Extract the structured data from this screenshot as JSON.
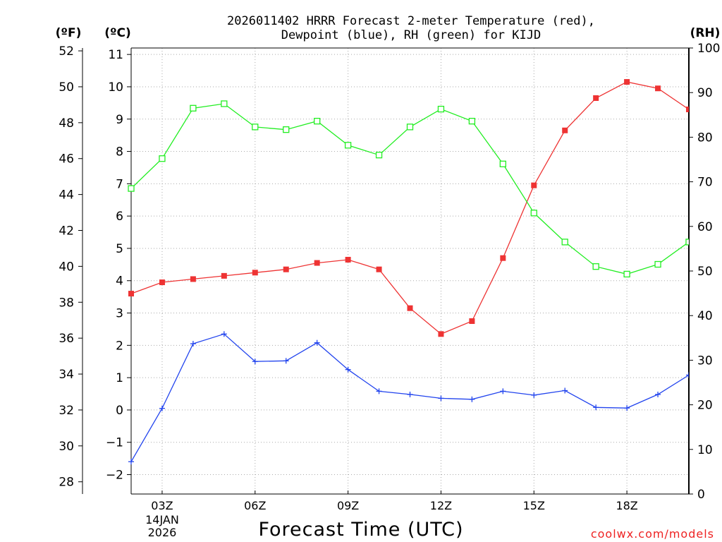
{
  "chart_data": {
    "type": "line",
    "title": [
      "2026011402 HRRR Forecast 2-meter Temperature (red),",
      "Dewpoint (blue), RH (green) for KIJD"
    ],
    "xlabel": "Forecast Time (UTC)",
    "credit": "coolwx.com/models",
    "units": {
      "fahrenheit": "(ºF)",
      "celsius": "(ºC)",
      "rh": "(RH)"
    },
    "x_hours": [
      2,
      3,
      4,
      5,
      6,
      7,
      8,
      9,
      10,
      11,
      12,
      13,
      14,
      15,
      16,
      17,
      18,
      19,
      20
    ],
    "x_ticks": [
      {
        "hour": 3,
        "label": "03Z",
        "date": "14JAN",
        "year": "2026"
      },
      {
        "hour": 6,
        "label": "06Z"
      },
      {
        "hour": 9,
        "label": "09Z"
      },
      {
        "hour": 12,
        "label": "12Z"
      },
      {
        "hour": 15,
        "label": "15Z"
      },
      {
        "hour": 18,
        "label": "18Z"
      }
    ],
    "xlim": [
      2,
      20
    ],
    "ylim_celsius": [
      -2.6,
      11.2
    ],
    "y_ticks_celsius": [
      "-2",
      "-1",
      "0",
      "1",
      "2",
      "3",
      "4",
      "5",
      "6",
      "7",
      "8",
      "9",
      "10",
      "11"
    ],
    "y_ticks_fahrenheit": [
      "28",
      "30",
      "32",
      "34",
      "36",
      "38",
      "40",
      "42",
      "44",
      "46",
      "48",
      "50",
      "52"
    ],
    "y_ticks_rh": [
      "0",
      "10",
      "20",
      "30",
      "40",
      "50",
      "60",
      "70",
      "80",
      "90",
      "100"
    ],
    "ylim_rh": [
      0,
      100
    ],
    "series": [
      {
        "name": "2-meter Temperature",
        "color": "#ee3333",
        "marker": "filled-square",
        "axis": "celsius",
        "values": [
          3.6,
          3.95,
          4.05,
          4.15,
          4.25,
          4.35,
          4.55,
          4.65,
          4.35,
          3.15,
          2.35,
          2.75,
          4.7,
          6.95,
          8.65,
          9.65,
          10.15,
          9.95,
          9.3
        ]
      },
      {
        "name": "Dewpoint",
        "color": "#2244ee",
        "marker": "plus",
        "axis": "celsius",
        "values": [
          -1.6,
          0.05,
          2.05,
          2.35,
          1.5,
          1.52,
          2.08,
          1.25,
          0.58,
          0.48,
          0.36,
          0.33,
          0.58,
          0.46,
          0.6,
          0.08,
          0.06,
          0.48,
          1.08
        ]
      },
      {
        "name": "RH",
        "color": "#22ee22",
        "marker": "open-square",
        "axis": "rh",
        "values": [
          68.5,
          75.2,
          86.5,
          87.5,
          82.3,
          81.7,
          83.6,
          78.2,
          76.0,
          82.3,
          86.3,
          83.6,
          74.0,
          63.0,
          56.5,
          51.0,
          49.3,
          51.5,
          56.5
        ]
      }
    ]
  }
}
